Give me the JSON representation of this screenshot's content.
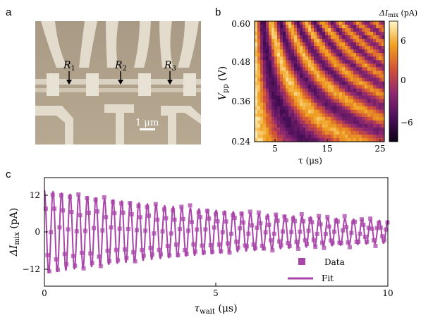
{
  "panels": {
    "a": {
      "label": "a",
      "resistors": [
        "R1",
        "R2",
        "R3"
      ],
      "resistor_sub": [
        "1",
        "2",
        "3"
      ],
      "scale_bar": "1 μm"
    },
    "b": {
      "label": "b",
      "ylabel_main": "V",
      "ylabel_sub": "pp",
      "ylabel_unit": " (V)",
      "xlabel": "τ (μs)",
      "colorbar_label_main": "ΔI",
      "colorbar_label_sub": "mix",
      "colorbar_label_unit": " (pA)",
      "x_ticks": [
        "5",
        "15",
        "25"
      ],
      "y_ticks": [
        "0.60",
        "0.48",
        "0.36",
        "0.24"
      ],
      "colorbar_ticks": [
        "6",
        "0",
        "−6"
      ]
    },
    "c": {
      "label": "c",
      "xlabel_main": "τ",
      "xlabel_sub": "wait",
      "xlabel_unit": " (μs)",
      "ylabel_main": "ΔI",
      "ylabel_sub": "mix",
      "ylabel_unit": " (pA)",
      "x_ticks": [
        "0",
        "5",
        "10"
      ],
      "y_ticks": [
        "12",
        "0",
        "−12"
      ],
      "legend": [
        "Data",
        "Fit"
      ]
    }
  },
  "colors": {
    "data": "#a845a8",
    "fit": "#a845a8",
    "sem_bg": "#b3a58f"
  },
  "chart_data": [
    {
      "type": "heatmap",
      "panel": "b",
      "x": "τ (μs)",
      "y": "Vpp (V)",
      "xlim": [
        0,
        25
      ],
      "ylim": [
        0.24,
        0.6
      ],
      "colorbar": "ΔImix (pA)",
      "clim": [
        -8,
        8
      ]
    },
    {
      "type": "scatter",
      "panel": "c",
      "xlim": [
        0,
        10
      ],
      "ylim": [
        -17,
        17
      ],
      "series": [
        {
          "name": "Data",
          "style": "markers"
        },
        {
          "name": "Fit",
          "style": "line",
          "amplitude_start": 13,
          "amplitude_end": 3.5,
          "period_us": 0.25
        }
      ]
    }
  ]
}
